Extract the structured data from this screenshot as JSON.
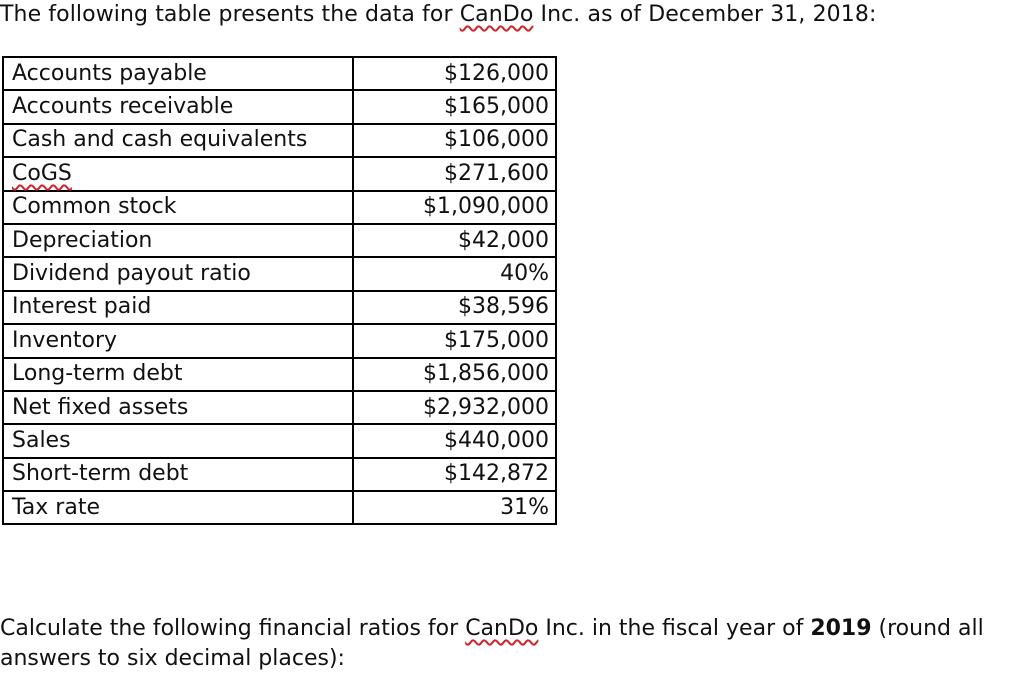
{
  "intro": {
    "before": "The following table presents the data for ",
    "company": "CanDo",
    "after": " Inc. as of December 31, 2018:"
  },
  "table": {
    "rows": [
      {
        "label": "Accounts payable",
        "value": "$126,000"
      },
      {
        "label": "Accounts receivable",
        "value": "$165,000"
      },
      {
        "label": "Cash and cash equivalents",
        "value": "$106,000"
      },
      {
        "label": "CoGS",
        "value": "$271,600"
      },
      {
        "label": "Common stock",
        "value": "$1,090,000"
      },
      {
        "label": "Depreciation",
        "value": "$42,000"
      },
      {
        "label": "Dividend payout ratio",
        "value": "40%"
      },
      {
        "label": "Interest paid",
        "value": "$38,596"
      },
      {
        "label": "Inventory",
        "value": "$175,000"
      },
      {
        "label": "Long-term debt",
        "value": "$1,856,000"
      },
      {
        "label": "Net fixed assets",
        "value": "$2,932,000"
      },
      {
        "label": "Sales",
        "value": "$440,000"
      },
      {
        "label": "Short-term debt",
        "value": "$142,872"
      },
      {
        "label": "Tax rate",
        "value": "31%"
      }
    ]
  },
  "outro": {
    "before": "Calculate the following financial ratios for ",
    "company": "CanDo",
    "middle": " Inc. in the fiscal year of ",
    "year": "2019",
    "after": " (round all answers to six decimal places):"
  },
  "colors": {
    "spellcheck_underline": "#d2232a",
    "border": "#000000"
  }
}
